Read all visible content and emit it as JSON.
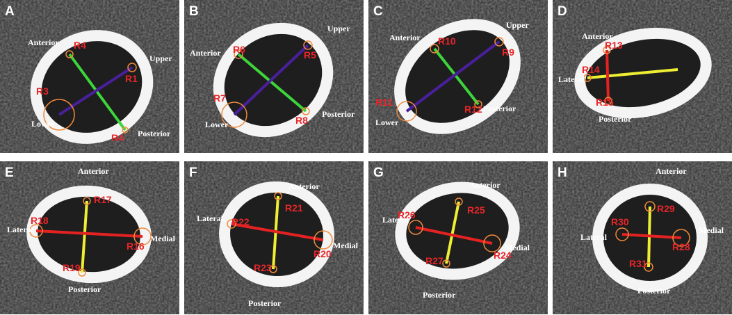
{
  "panels": [
    {
      "letter": "A",
      "rois": [
        "R4",
        "R1",
        "R3",
        "R4"
      ],
      "directions": [
        "Anterior",
        "Upper",
        "Lower",
        "Posterior"
      ]
    },
    {
      "letter": "B",
      "rois": [
        "R6",
        "R5",
        "R7",
        "R8"
      ],
      "directions": [
        "Anterior",
        "Upper",
        "Lower",
        "Posterior"
      ]
    },
    {
      "letter": "C",
      "rois": [
        "R10",
        "R9",
        "R11",
        "R12"
      ],
      "directions": [
        "Anterior",
        "Upper",
        "Lower",
        "Posterior"
      ]
    },
    {
      "letter": "D",
      "rois": [
        "R13",
        "R14",
        "R15"
      ],
      "directions": [
        "Anterior",
        "Lateral",
        "Posterior"
      ]
    },
    {
      "letter": "E",
      "rois": [
        "R17",
        "R18",
        "R16",
        "R19"
      ],
      "directions": [
        "Anterior",
        "Lateral",
        "Medial",
        "Posterior"
      ]
    },
    {
      "letter": "F",
      "rois": [
        "R21",
        "R22",
        "R20",
        "R23"
      ],
      "directions": [
        "Anterior",
        "Lateral",
        "Medial",
        "Posterior"
      ]
    },
    {
      "letter": "G",
      "rois": [
        "R25",
        "R26",
        "R24",
        "R27"
      ],
      "directions": [
        "Anterior",
        "Lateral",
        "Medial",
        "Posterior"
      ]
    },
    {
      "letter": "H",
      "rois": [
        "R29",
        "R30",
        "R28",
        "R31"
      ],
      "directions": [
        "Anterior",
        "Lateral",
        "Medial",
        "Posterior"
      ]
    }
  ]
}
